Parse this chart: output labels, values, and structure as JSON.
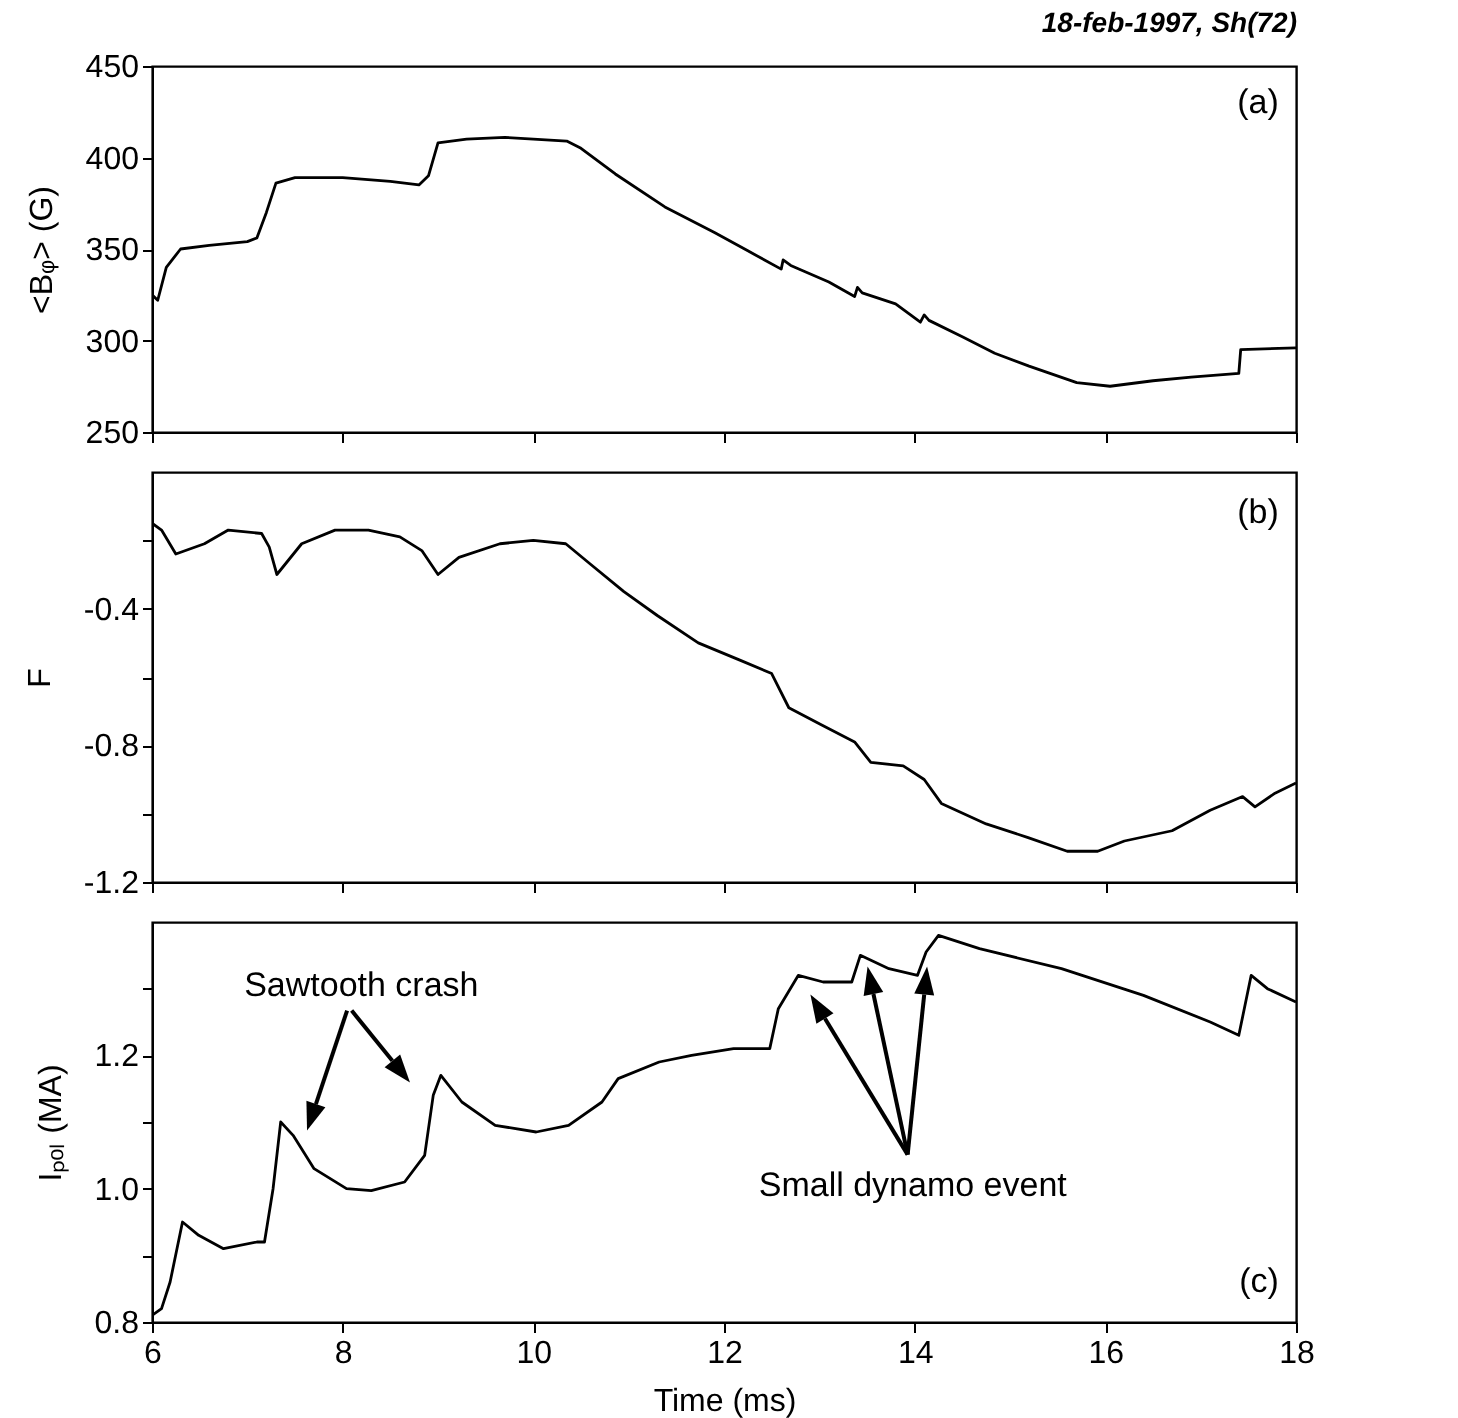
{
  "chart_data": [
    {
      "type": "line",
      "title": "18-feb-1997, Sh(72)",
      "ylabel": "<Bᵩ> (G)",
      "annotations": [
        "(a)"
      ],
      "xlim": [
        6,
        18
      ],
      "xticks": [
        6,
        8,
        10,
        12,
        14,
        16,
        18
      ],
      "ylim": [
        250,
        450
      ],
      "yticks": [
        250,
        300,
        350,
        400,
        450
      ],
      "tick_labels": "y",
      "grid": false,
      "x": [
        6.0,
        6.06,
        6.15,
        6.3,
        6.6,
        7.0,
        7.1,
        7.2,
        7.3,
        7.5,
        8.0,
        8.5,
        8.8,
        8.9,
        9.0,
        9.3,
        9.7,
        10.0,
        10.35,
        10.5,
        10.86,
        11.38,
        11.9,
        12.25,
        12.6,
        12.62,
        12.7,
        13.1,
        13.37,
        13.4,
        13.45,
        13.8,
        14.06,
        14.1,
        14.15,
        14.5,
        14.84,
        15.2,
        15.7,
        16.05,
        16.5,
        16.9,
        17.4,
        17.42,
        18.0
      ],
      "values": [
        325,
        322,
        340,
        350,
        352,
        354,
        356,
        370,
        386,
        389,
        389,
        387,
        385,
        390,
        408,
        410,
        411,
        410,
        409,
        405,
        391,
        373,
        359,
        349,
        339,
        344,
        341,
        332,
        324,
        329,
        326,
        320,
        310,
        314,
        311,
        302,
        293,
        286,
        277,
        275,
        278,
        280,
        282,
        295,
        296
      ]
    },
    {
      "type": "line",
      "ylabel": "F",
      "annotations": [
        "(b)"
      ],
      "xlim": [
        6,
        18
      ],
      "xticks": [
        6,
        8,
        10,
        12,
        14,
        16,
        18
      ],
      "ylim": [
        -1.2,
        0
      ],
      "yticks": [
        {
          "value": -1.2,
          "label": "-1.2"
        },
        {
          "value": -1.0,
          "label": null
        },
        {
          "value": -0.8,
          "label": "-0.8"
        },
        {
          "value": -0.6,
          "label": null
        },
        {
          "value": -0.4,
          "label": "-0.4"
        },
        {
          "value": -0.2,
          "label": null
        }
      ],
      "tick_labels": "y",
      "grid": false,
      "x": [
        6.0,
        6.1,
        6.25,
        6.55,
        6.8,
        7.15,
        7.23,
        7.31,
        7.57,
        7.92,
        8.27,
        8.6,
        8.83,
        9.0,
        9.22,
        9.65,
        10.0,
        10.34,
        10.6,
        10.95,
        11.3,
        11.73,
        12.16,
        12.5,
        12.68,
        13.02,
        13.37,
        13.54,
        13.88,
        14.1,
        14.28,
        14.75,
        15.19,
        15.6,
        15.92,
        16.2,
        16.7,
        17.1,
        17.44,
        17.57,
        17.78,
        18.0
      ],
      "values": [
        -0.15,
        -0.17,
        -0.24,
        -0.21,
        -0.17,
        -0.18,
        -0.22,
        -0.3,
        -0.21,
        -0.17,
        -0.17,
        -0.19,
        -0.23,
        -0.3,
        -0.25,
        -0.21,
        -0.2,
        -0.21,
        -0.27,
        -0.35,
        -0.42,
        -0.5,
        -0.55,
        -0.59,
        -0.69,
        -0.74,
        -0.79,
        -0.85,
        -0.86,
        -0.9,
        -0.97,
        -1.03,
        -1.07,
        -1.11,
        -1.11,
        -1.08,
        -1.05,
        -0.99,
        -0.95,
        -0.98,
        -0.94,
        -0.91
      ]
    },
    {
      "type": "line",
      "xlabel": "Time (ms)",
      "ylabel": "Iₚₒₗ (MA)",
      "annotations": [
        "Sawtooth crash",
        "Small dynamo event",
        "(c)"
      ],
      "xlim": [
        6,
        18
      ],
      "xticks": [
        6,
        8,
        10,
        12,
        14,
        16,
        18
      ],
      "ylim": [
        0.8,
        1.4
      ],
      "yticks": [
        {
          "value": 0.8,
          "label": "0.8"
        },
        {
          "value": 0.9,
          "label": null
        },
        {
          "value": 1.0,
          "label": "1.0"
        },
        {
          "value": 1.1,
          "label": null
        },
        {
          "value": 1.2,
          "label": "1.2"
        },
        {
          "value": 1.3,
          "label": null
        }
      ],
      "grid": false,
      "x": [
        6.0,
        6.1,
        6.19,
        6.32,
        6.49,
        6.75,
        7.1,
        7.18,
        7.27,
        7.35,
        7.48,
        7.7,
        8.04,
        8.3,
        8.65,
        8.86,
        8.95,
        9.03,
        9.25,
        9.6,
        10.03,
        10.37,
        10.72,
        10.89,
        11.32,
        11.66,
        12.1,
        12.48,
        12.57,
        12.78,
        13.04,
        13.34,
        13.43,
        13.73,
        14.03,
        14.12,
        14.25,
        14.68,
        15.54,
        16.4,
        17.1,
        17.4,
        17.53,
        17.7,
        18.0
      ],
      "values": [
        0.81,
        0.82,
        0.86,
        0.95,
        0.93,
        0.91,
        0.92,
        0.92,
        1.0,
        1.1,
        1.08,
        1.03,
        1.0,
        0.997,
        1.01,
        1.05,
        1.14,
        1.17,
        1.13,
        1.095,
        1.085,
        1.095,
        1.13,
        1.165,
        1.19,
        1.2,
        1.21,
        1.21,
        1.27,
        1.32,
        1.31,
        1.31,
        1.35,
        1.33,
        1.32,
        1.355,
        1.38,
        1.36,
        1.33,
        1.29,
        1.25,
        1.23,
        1.32,
        1.3,
        1.28
      ]
    }
  ]
}
